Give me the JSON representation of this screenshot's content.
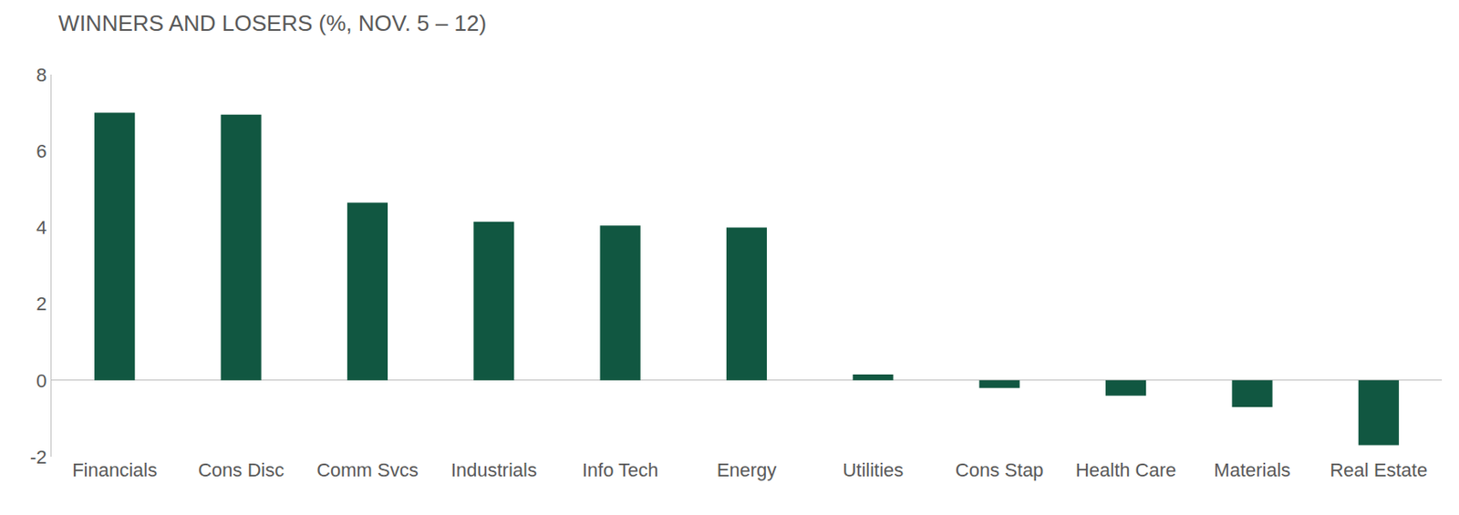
{
  "chart_data": {
    "type": "bar",
    "title": "WINNERS AND LOSERS (%, NOV. 5 – 12)",
    "categories": [
      "Financials",
      "Cons Disc",
      "Comm Svcs",
      "Industrials",
      "Info Tech",
      "Energy",
      "Utilities",
      "Cons Stap",
      "Health Care",
      "Materials",
      "Real Estate"
    ],
    "values": [
      7.0,
      6.95,
      4.65,
      4.15,
      4.05,
      4.0,
      0.15,
      -0.2,
      -0.4,
      -0.7,
      -1.7
    ],
    "color": "#115741",
    "ylim": [
      -2,
      8
    ],
    "yticks": [
      -2,
      0,
      2,
      4,
      6,
      8
    ],
    "grid": false
  }
}
